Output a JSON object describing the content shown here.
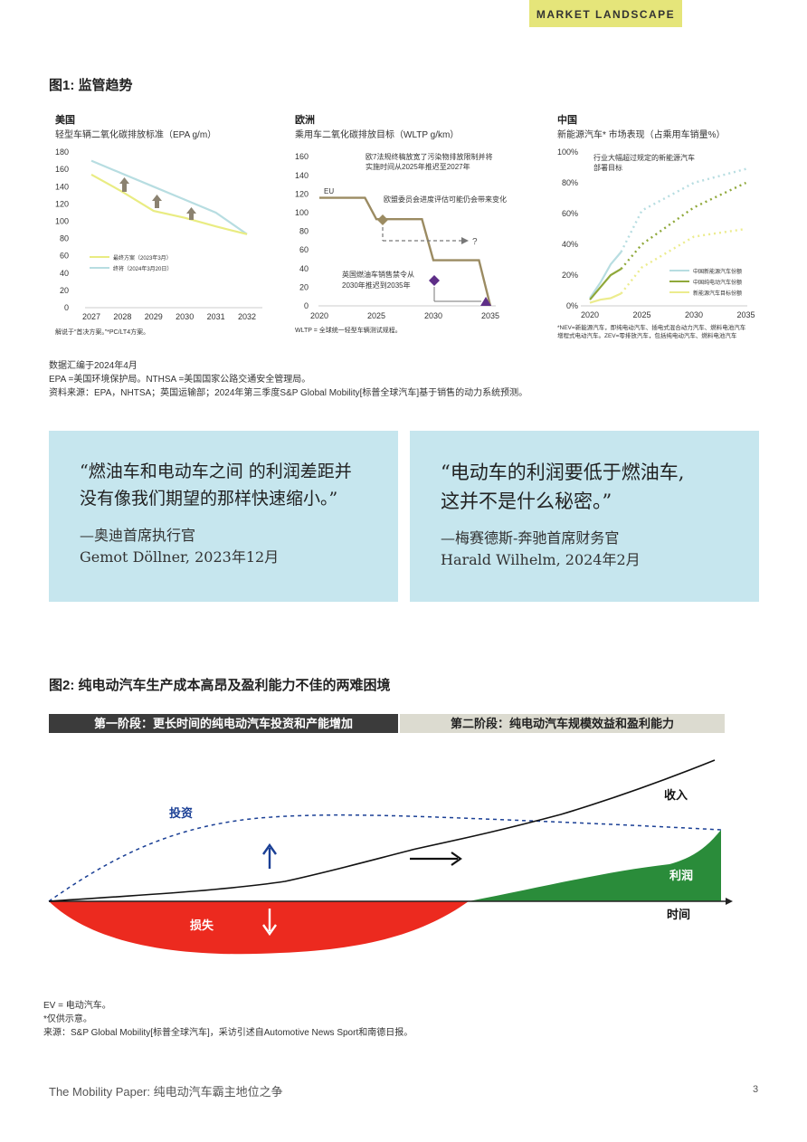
{
  "header": {
    "tag": "MARKET LANDSCAPE"
  },
  "fig1": {
    "title": "图1: 监管趋势",
    "us": {
      "region": "美国",
      "subtitle": "轻型车辆二氧化碳排放标准（EPA g/m）",
      "y_ticks": [
        "180",
        "160",
        "140",
        "120",
        "100",
        "80",
        "60",
        "40",
        "20",
        "0"
      ],
      "x_ticks": [
        "2027",
        "2028",
        "2029",
        "2030",
        "2031",
        "2032"
      ],
      "legend": [
        "最终方案（2023年3月）",
        "终将（2024年3月20日）"
      ],
      "note": "解说于“首决方案。”*PC/LT4方案。",
      "chart_data": {
        "type": "line",
        "x": [
          2027,
          2028,
          2029,
          2030,
          2031,
          2032
        ],
        "series": [
          {
            "name": "最终方案（2023年3月）",
            "values": [
              154,
              134,
              112,
              104,
              94,
              85
            ]
          },
          {
            "name": "终将（2024年3月20日）",
            "values": [
              170,
              155,
              140,
              125,
              110,
              85
            ]
          }
        ],
        "ylim": [
          0,
          180
        ]
      }
    },
    "eu": {
      "region": "欧洲",
      "subtitle": "乘用车二氧化碳排放目标（WLTP g/km）",
      "y_ticks": [
        "160",
        "140",
        "120",
        "100",
        "80",
        "60",
        "40",
        "20",
        "0"
      ],
      "x_ticks": [
        "2020",
        "2025",
        "2030",
        "2035"
      ],
      "series_label": "EU",
      "annotations": [
        "欧7法规终稿放宽了污染物排放限制并将",
        "实施时间从2025年推迟至2027年",
        "欧盟委员会进度评估可能仍会带来变化",
        "英国燃油车销售禁令从",
        "2030年推迟到2035年"
      ],
      "question": "?",
      "note": "WLTP = 全球统一轻型车辆测试规程。",
      "chart_data": {
        "type": "line",
        "x": [
          2020,
          2024,
          2025,
          2029,
          2030,
          2034,
          2035
        ],
        "series": [
          {
            "name": "EU",
            "values": [
              116,
              116,
              93,
              93,
              49,
              49,
              0
            ]
          }
        ],
        "ylim": [
          0,
          160
        ]
      }
    },
    "cn": {
      "region": "中国",
      "subtitle": "新能源汽车* 市场表现（占乘用车销量%）",
      "y_ticks": [
        "100%",
        "80%",
        "60%",
        "40%",
        "20%",
        "0%"
      ],
      "x_ticks": [
        "2020",
        "2025",
        "2030",
        "2035"
      ],
      "annotation": [
        "行业大幅超过规定的新能源汽车",
        "部署目标"
      ],
      "legend": [
        "中国新能源汽车份额",
        "中国纯电动汽车份额",
        "新能源汽车目标份额"
      ],
      "note": [
        "*NEV=新能源汽车，即纯电动汽车、插电式混合动力汽车、燃料电池汽车",
        "增程式电动汽车。ZEV=零排放汽车，包括纯电动汽车、燃料电池汽车"
      ],
      "chart_data": {
        "type": "line",
        "x": [
          2020,
          2021,
          2022,
          2023,
          2025,
          2030,
          2035
        ],
        "series": [
          {
            "name": "中国新能源汽车份额",
            "values": [
              5,
              15,
              27,
              35,
              62,
              80,
              89
            ]
          },
          {
            "name": "中国纯电动汽车份额",
            "values": [
              4,
              12,
              20,
              24,
              40,
              64,
              80
            ]
          },
          {
            "name": "新能源汽车目标份额",
            "values": [
              2,
              4,
              5,
              8,
              25,
              45,
              50
            ]
          }
        ],
        "ylim": [
          0,
          100
        ]
      }
    },
    "sources": [
      "数据汇编于2024年4月",
      "EPA =美国环境保护局。NTHSA =美国国家公路交通安全管理局。",
      "资料来源：EPA，NHTSA；英国运输部；2024年第三季度S&P Global Mobility[标普全球汽车]基于销售的动力系统预测。"
    ]
  },
  "quotes": [
    {
      "text": [
        "“燃油车和电动车之间 的利润差距并",
        "没有像我们期望的那样快速缩小。”"
      ],
      "attr": [
        "—奥迪首席执行官",
        "Gemot Döllner, 2023年12月"
      ]
    },
    {
      "text": [
        "“电动车的利润要低于燃油车,",
        "这并不是什么秘密。”"
      ],
      "attr": [
        "—梅赛德斯-奔驰首席财务官",
        "Harald Wilhelm, 2024年2月"
      ]
    }
  ],
  "fig2": {
    "title": "图2: 纯电动汽车生产成本高昂及盈利能力不佳的两难困境",
    "phase1": "第一阶段：更长时间的纯电动汽车投资和产能增加",
    "phase2": "第二阶段：纯电动汽车规模效益和盈利能力",
    "labels": {
      "investment": "投资",
      "revenue": "收入",
      "profit": "利润",
      "loss": "损失",
      "time": "时间"
    },
    "colors": {
      "loss": "#ec2a1f",
      "profit": "#2a8c3a",
      "investment": "#1a3f95"
    }
  },
  "footnotes": [
    "EV = 电动汽车。",
    "*仅供示意。",
    "来源：S&P Global Mobility[标普全球汽车]，采访引述自Automotive News Sport和南德日报。"
  ],
  "footer": {
    "title": "The Mobility Paper: 纯电动汽车霸主地位之争",
    "page": "3"
  }
}
